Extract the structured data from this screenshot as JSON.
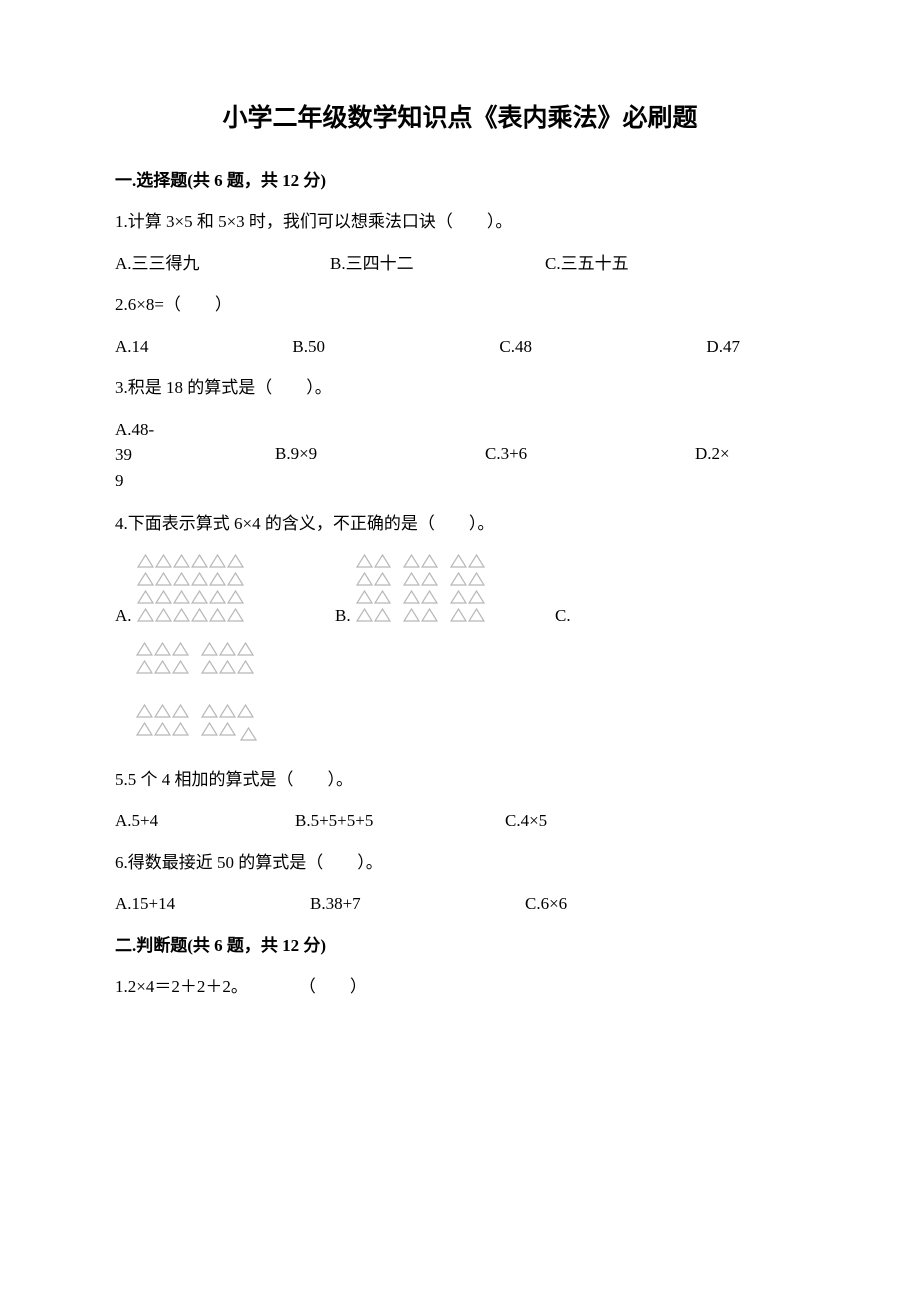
{
  "title": "小学二年级数学知识点《表内乘法》必刷题",
  "section1": {
    "heading": "一.选择题(共 6 题，共 12 分)",
    "q1": {
      "text": "1.计算 3×5 和 5×3 时，我们可以想乘法口诀（　　）。",
      "a": "A.三三得九",
      "b": "B.三四十二",
      "c": "C.三五十五"
    },
    "q2": {
      "text": "2.6×8=（　　）",
      "a": "A.14",
      "b": "B.50",
      "c": "C.48",
      "d": "D.47"
    },
    "q3": {
      "text": "3.积是 18 的算式是（　　）。",
      "a1": "A.48-",
      "a2": "39",
      "a3": "9",
      "b": "B.9×9",
      "c": "C.3+6",
      "d": "D.2×"
    },
    "q4": {
      "text": "4.下面表示算式 6×4 的含义，不正确的是（　　）。",
      "a_prefix": "A.",
      "b_prefix": "B.",
      "c_prefix": "C."
    },
    "q5": {
      "text": "5.5 个 4 相加的算式是（　　）。",
      "a": "A.5+4",
      "b": "B.5+5+5+5",
      "c": "C.4×5"
    },
    "q6": {
      "text": "6.得数最接近 50 的算式是（　　）。",
      "a": "A.15+14",
      "b": "B.38+7",
      "c": "C.6×6"
    }
  },
  "section2": {
    "heading": "二.判断题(共 6 题，共 12 分)",
    "q1": {
      "text": "1.2×4＝2＋2＋2。　　　　（　　）"
    }
  },
  "triangles": {
    "stroke_color": "#b8b8b8",
    "fill": "none",
    "stroke_width": 1.2,
    "tri_width": 17,
    "tri_height": 14,
    "col_gap": 1,
    "row_gap": 4,
    "group_gap": 12,
    "optA": {
      "groups_per_row": 1,
      "rows": 4,
      "tris_per_group": 6
    },
    "optB": {
      "groups_per_row": 3,
      "rows": 4,
      "tris_per_group": 2
    },
    "optC_top": {
      "groups_per_row": 2,
      "rows": 2,
      "tris_per_group": 3
    },
    "optC_bot": {
      "groups_per_row": 2,
      "rows": 2,
      "layout": [
        [
          [
            1,
            1,
            1
          ],
          [
            1,
            1,
            1
          ]
        ],
        [
          [
            1,
            1,
            1
          ],
          [
            1,
            1,
            0.6
          ]
        ]
      ]
    }
  },
  "option_widths": {
    "three_col": [
      215,
      215,
      215
    ],
    "four_col": [
      180,
      210,
      210,
      100
    ],
    "q3_cols": [
      210,
      210,
      110
    ]
  }
}
